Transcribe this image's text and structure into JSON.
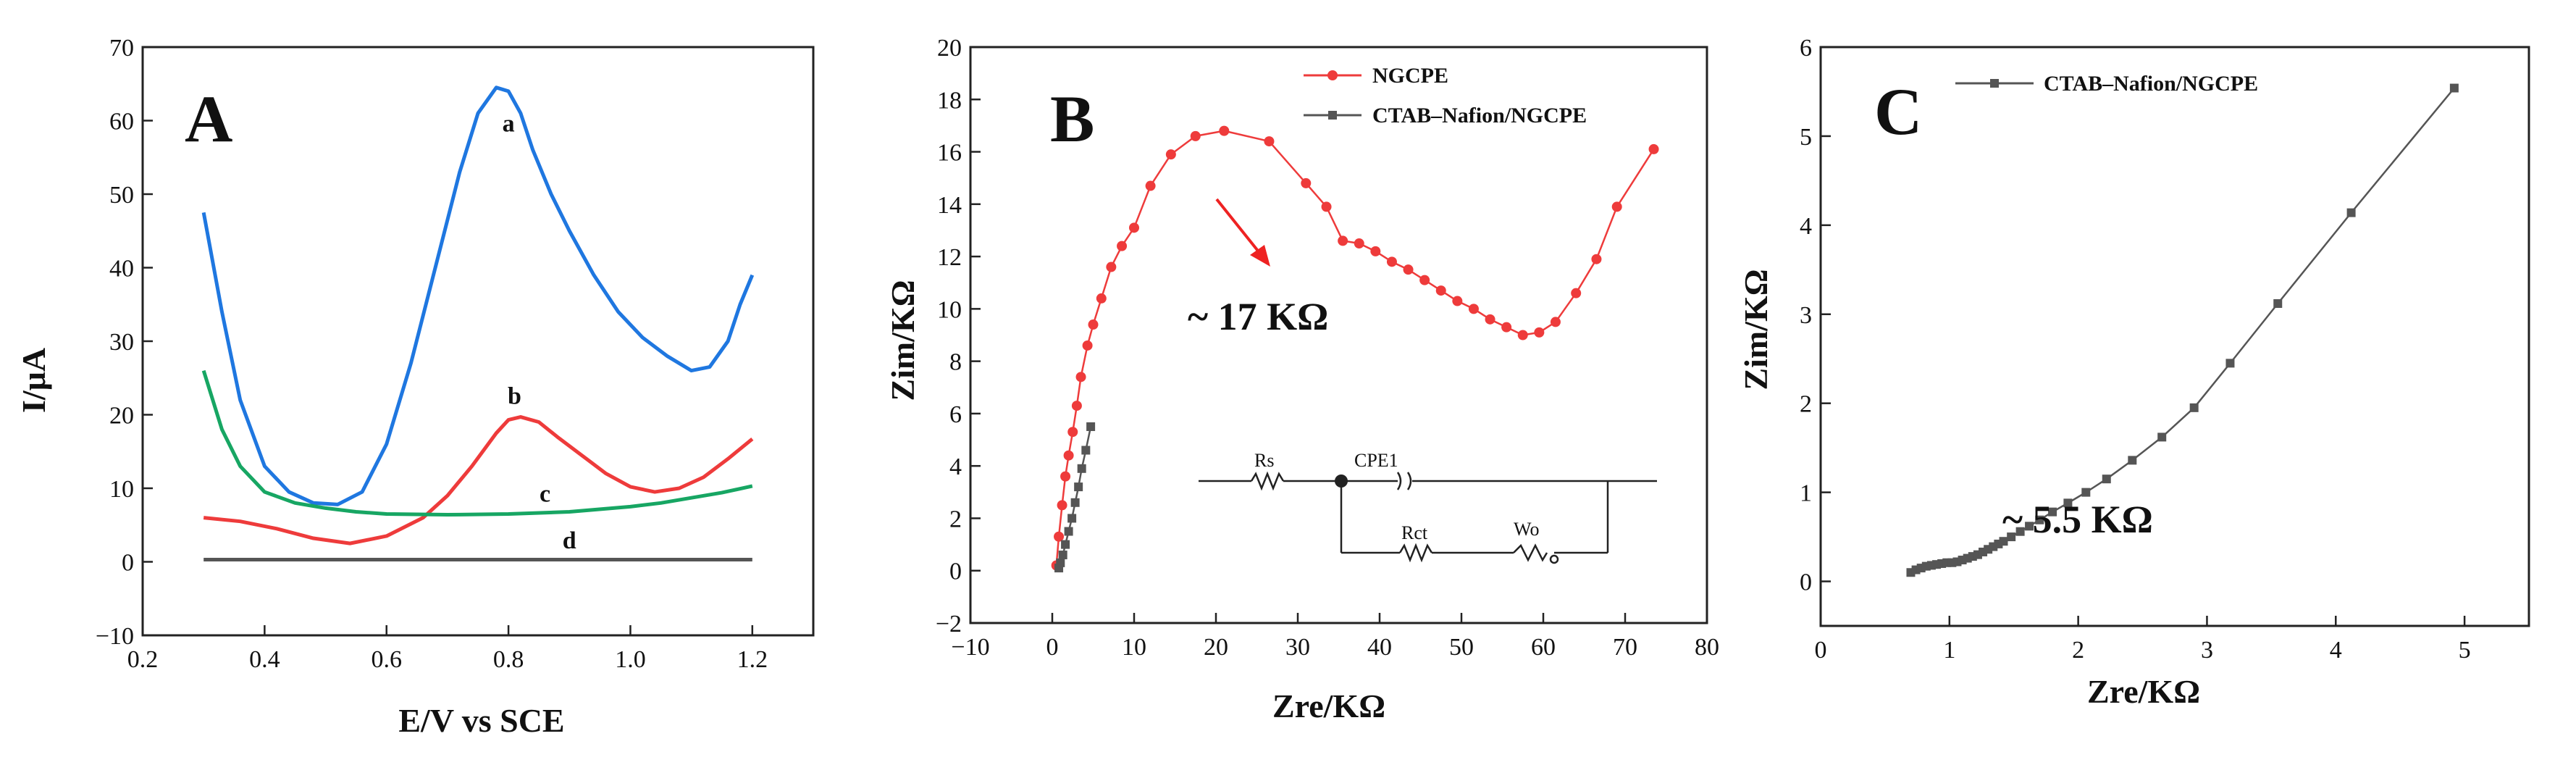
{
  "chart_data": [
    {
      "type": "line",
      "panel_label": "A",
      "xlabel": "E/V vs SCE",
      "ylabel": "I/μA",
      "xlim": [
        0.2,
        1.3
      ],
      "ylim": [
        -10,
        70
      ],
      "xticks": [
        0.2,
        0.4,
        0.6,
        0.8,
        1.0,
        1.2
      ],
      "xtick_labels": [
        "0.2",
        "0.4",
        "0.6",
        "0.8",
        "1.0",
        "1.2"
      ],
      "yticks": [
        -10,
        0,
        10,
        20,
        30,
        40,
        50,
        60,
        70
      ],
      "ytick_labels": [
        "−10",
        "0",
        "10",
        "20",
        "30",
        "40",
        "50",
        "60",
        "70"
      ],
      "series": [
        {
          "name": "a",
          "color": "#1f77e0",
          "x": [
            0.3,
            0.33,
            0.36,
            0.4,
            0.44,
            0.48,
            0.52,
            0.56,
            0.6,
            0.64,
            0.68,
            0.72,
            0.75,
            0.78,
            0.8,
            0.82,
            0.84,
            0.87,
            0.9,
            0.94,
            0.98,
            1.02,
            1.06,
            1.1,
            1.13,
            1.16,
            1.18,
            1.2
          ],
          "y": [
            47.5,
            34,
            22,
            13,
            9.5,
            8,
            7.8,
            9.5,
            16,
            27,
            40,
            53,
            61,
            64.5,
            64,
            61,
            56,
            50,
            45,
            39,
            34,
            30.5,
            28,
            26,
            26.5,
            30,
            35,
            39
          ]
        },
        {
          "name": "b",
          "color": "#ee3b3b",
          "x": [
            0.3,
            0.36,
            0.42,
            0.48,
            0.54,
            0.6,
            0.66,
            0.7,
            0.74,
            0.78,
            0.8,
            0.82,
            0.85,
            0.88,
            0.92,
            0.96,
            1.0,
            1.04,
            1.08,
            1.12,
            1.16,
            1.2
          ],
          "y": [
            6,
            5.5,
            4.5,
            3.2,
            2.5,
            3.5,
            6,
            9,
            13,
            17.5,
            19.3,
            19.7,
            19,
            17,
            14.5,
            12,
            10.2,
            9.5,
            10,
            11.5,
            14,
            16.7
          ]
        },
        {
          "name": "c",
          "color": "#17a663",
          "x": [
            0.3,
            0.33,
            0.36,
            0.4,
            0.45,
            0.5,
            0.55,
            0.6,
            0.7,
            0.8,
            0.9,
            1.0,
            1.05,
            1.1,
            1.15,
            1.2
          ],
          "y": [
            26,
            18,
            13,
            9.5,
            8,
            7.3,
            6.8,
            6.5,
            6.4,
            6.5,
            6.8,
            7.5,
            8,
            8.7,
            9.4,
            10.3
          ]
        },
        {
          "name": "d",
          "color": "#555555",
          "x": [
            0.3,
            0.5,
            0.7,
            0.9,
            1.1,
            1.2
          ],
          "y": [
            0.3,
            0.3,
            0.3,
            0.3,
            0.3,
            0.3
          ]
        }
      ],
      "curve_labels": [
        {
          "text": "a",
          "x": 0.8,
          "y": 58.5
        },
        {
          "text": "b",
          "x": 0.81,
          "y": 21.5
        },
        {
          "text": "c",
          "x": 0.86,
          "y": 8.2
        },
        {
          "text": "d",
          "x": 0.9,
          "y": 1.8
        }
      ]
    },
    {
      "type": "line",
      "panel_label": "B",
      "xlabel": "Zre/KΩ",
      "ylabel": "Zim/KΩ",
      "xlim": [
        -10,
        80
      ],
      "ylim": [
        -2,
        20
      ],
      "xticks": [
        -10,
        0,
        10,
        20,
        30,
        40,
        50,
        60,
        70,
        80
      ],
      "xtick_labels": [
        "−10",
        "0",
        "10",
        "20",
        "30",
        "40",
        "50",
        "60",
        "70",
        "80"
      ],
      "yticks": [
        -2,
        0,
        2,
        4,
        6,
        8,
        10,
        12,
        14,
        16,
        18,
        20
      ],
      "ytick_labels": [
        "−2",
        "0",
        "2",
        "4",
        "6",
        "8",
        "10",
        "12",
        "14",
        "16",
        "18",
        "20"
      ],
      "series": [
        {
          "name": "NGCPE",
          "color": "#ee3b3b",
          "marker": "circle",
          "x": [
            0.5,
            0.8,
            1.2,
            1.6,
            2.0,
            2.5,
            3.0,
            3.5,
            4.3,
            5.0,
            6.0,
            7.2,
            8.5,
            10.0,
            12.0,
            14.5,
            17.5,
            21.0,
            26.5,
            31.0,
            33.5,
            35.5,
            37.5,
            39.5,
            41.5,
            43.5,
            45.5,
            47.5,
            49.5,
            51.5,
            53.5,
            55.5,
            57.5,
            59.5,
            61.5,
            64.0,
            66.5,
            69.0,
            73.5
          ],
          "y": [
            0.2,
            1.3,
            2.5,
            3.6,
            4.4,
            5.3,
            6.3,
            7.4,
            8.6,
            9.4,
            10.4,
            11.6,
            12.4,
            13.1,
            14.7,
            15.9,
            16.6,
            16.8,
            16.4,
            14.8,
            13.9,
            12.6,
            12.5,
            12.2,
            11.8,
            11.5,
            11.1,
            10.7,
            10.3,
            10.0,
            9.6,
            9.3,
            9.0,
            9.1,
            9.5,
            10.6,
            11.9,
            13.9,
            16.1
          ]
        },
        {
          "name": "CTAB–Nafion/NGCPE",
          "color": "#555555",
          "marker": "square",
          "x": [
            0.8,
            1.0,
            1.3,
            1.6,
            2.0,
            2.4,
            2.8,
            3.2,
            3.6,
            4.1,
            4.7
          ],
          "y": [
            0.1,
            0.3,
            0.6,
            1.0,
            1.5,
            2.0,
            2.6,
            3.2,
            3.9,
            4.6,
            5.5
          ]
        }
      ],
      "annotations": {
        "arrow_text": "~ 17 KΩ"
      },
      "equivalent_circuit": [
        "Rs",
        "CPE1",
        "Rct",
        "Wo"
      ]
    },
    {
      "type": "line",
      "panel_label": "C",
      "xlabel": "Zre/KΩ",
      "ylabel": "Zim/KΩ",
      "xlim": [
        0,
        5.5
      ],
      "ylim": [
        -0.5,
        6
      ],
      "xticks": [
        0,
        1,
        2,
        3,
        4,
        5
      ],
      "xtick_labels": [
        "0",
        "1",
        "2",
        "3",
        "4",
        "5"
      ],
      "yticks": [
        0,
        1,
        2,
        3,
        4,
        5,
        6
      ],
      "ytick_labels": [
        "0",
        "1",
        "2",
        "3",
        "4",
        "5",
        "6"
      ],
      "series": [
        {
          "name": "CTAB–Nafion/NGCPE",
          "color": "#555555",
          "marker": "square",
          "x": [
            0.7,
            0.74,
            0.78,
            0.82,
            0.86,
            0.9,
            0.94,
            0.98,
            1.02,
            1.06,
            1.1,
            1.14,
            1.18,
            1.22,
            1.26,
            1.3,
            1.34,
            1.38,
            1.42,
            1.48,
            1.55,
            1.62,
            1.7,
            1.8,
            1.92,
            2.06,
            2.22,
            2.42,
            2.65,
            2.9,
            3.18,
            3.55,
            4.12,
            4.92
          ],
          "y": [
            0.1,
            0.13,
            0.15,
            0.17,
            0.18,
            0.19,
            0.2,
            0.21,
            0.21,
            0.22,
            0.24,
            0.26,
            0.28,
            0.3,
            0.33,
            0.36,
            0.39,
            0.42,
            0.45,
            0.5,
            0.56,
            0.62,
            0.69,
            0.78,
            0.88,
            1.0,
            1.15,
            1.36,
            1.62,
            1.95,
            2.45,
            3.12,
            4.14,
            5.54
          ]
        }
      ],
      "annotations": {
        "text": "~ 5.5 KΩ"
      }
    }
  ]
}
